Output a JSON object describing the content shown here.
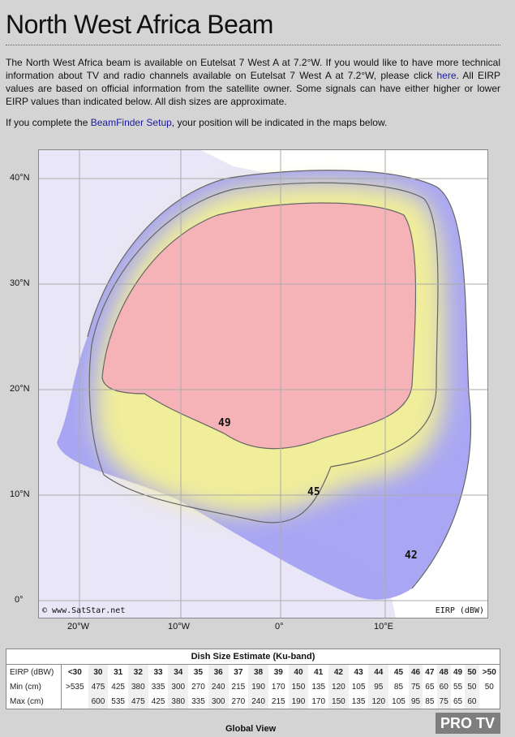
{
  "title": "North West Africa Beam",
  "intro": {
    "part1": "The North West Africa beam is available on Eutelsat 7 West A at 7.2°W. If you would like to have more technical information about TV and radio channels available on Eutelsat 7 West A at 7.2°W, please click ",
    "link": "here",
    "part2": ". All EIRP values are based on official information from the satellite owner. Some signals can have either higher or lower EIRP values than indicated below. All dish sizes are approximate."
  },
  "beamfinder": {
    "part1": "If you complete the ",
    "link": "BeamFinder Setup",
    "part2": ", your position will be indicated in the maps below."
  },
  "map": {
    "lat_labels": [
      "40°N",
      "30°N",
      "20°N",
      "10°N",
      "0°"
    ],
    "lon_labels": [
      "20°W",
      "10°W",
      "0°",
      "10°E"
    ],
    "contour_labels": [
      "49",
      "45",
      "42"
    ],
    "credit": "© www.SatStar.net",
    "unit": "EIRP (dBW)",
    "colors": {
      "outer": "#9a9af0",
      "core": "#f5b3b8",
      "land_bg": "#ffffff",
      "sea_bg": "#e9e6f7"
    }
  },
  "table": {
    "title": "Dish Size Estimate (Ku-band)",
    "rows": [
      {
        "label": "EIRP (dBW)",
        "values": [
          "<30",
          "30",
          "31",
          "32",
          "33",
          "34",
          "35",
          "36",
          "37",
          "38",
          "39",
          "40",
          "41",
          "42",
          "43",
          "44",
          "45",
          "46",
          "47",
          "48",
          "49",
          "50",
          ">50"
        ]
      },
      {
        "label": "Min (cm)",
        "values": [
          ">535",
          "475",
          "425",
          "380",
          "335",
          "300",
          "270",
          "240",
          "215",
          "190",
          "170",
          "150",
          "135",
          "120",
          "105",
          "95",
          "85",
          "75",
          "65",
          "60",
          "55",
          "50",
          "50"
        ]
      },
      {
        "label": "Max (cm)",
        "values": [
          "",
          "600",
          "535",
          "475",
          "425",
          "380",
          "335",
          "300",
          "270",
          "240",
          "215",
          "190",
          "170",
          "150",
          "135",
          "120",
          "105",
          "95",
          "85",
          "75",
          "65",
          "60",
          ""
        ]
      }
    ]
  },
  "global_view": "Global View",
  "watermark": "PRO TV"
}
